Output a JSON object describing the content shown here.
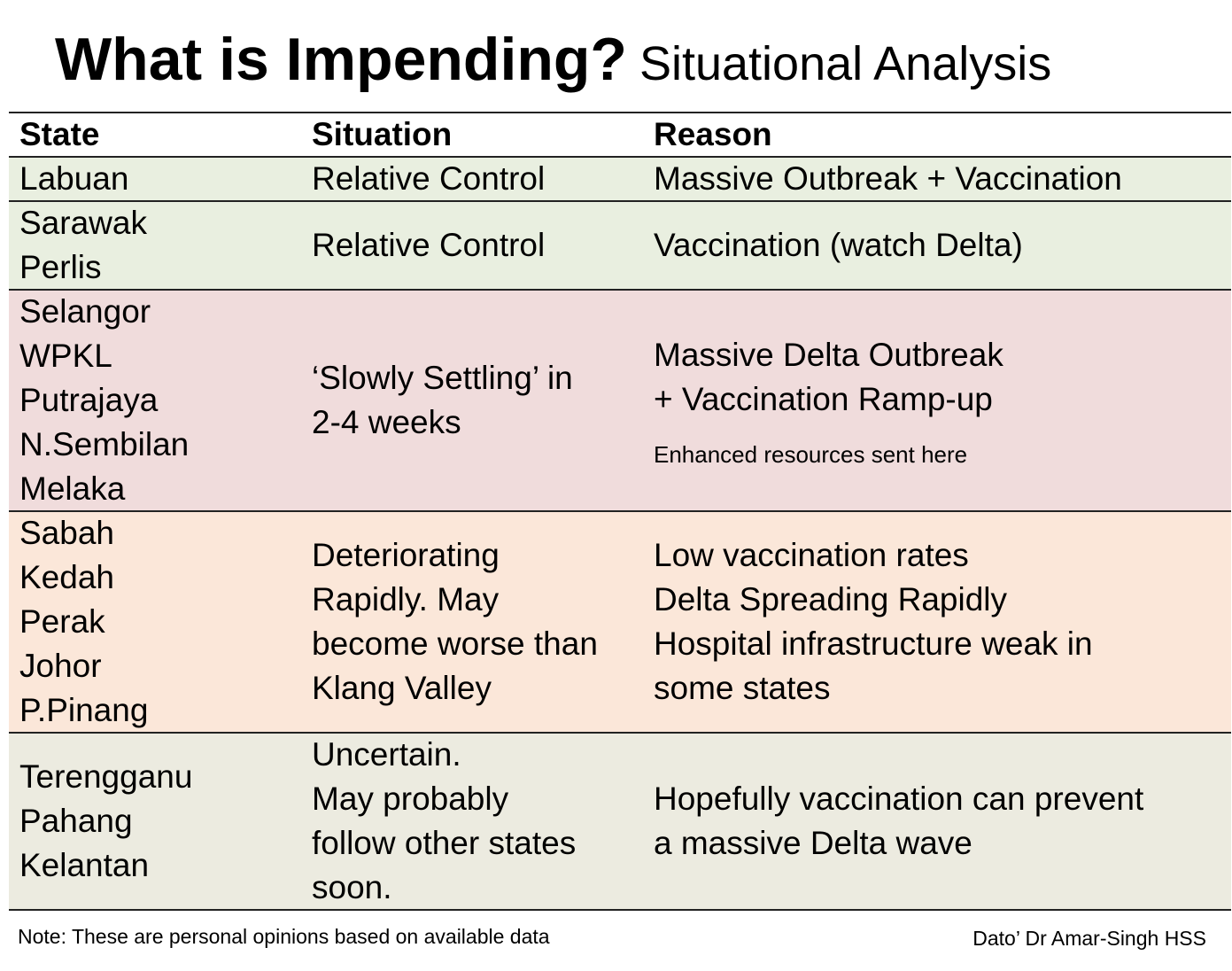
{
  "title": "What is Impending?",
  "subtitle": "Situational Analysis",
  "table": {
    "headers": [
      "State",
      "Situation",
      "Reason"
    ],
    "rows": [
      {
        "states": [
          "Labuan"
        ],
        "situation": [
          "Relative Control"
        ],
        "reason": [
          "Massive Outbreak + Vaccination"
        ]
      },
      {
        "states": [
          "Sarawak",
          "Perlis"
        ],
        "situation": [
          "Relative Control"
        ],
        "reason": [
          "Vaccination (watch Delta)"
        ]
      },
      {
        "states": [
          "Selangor",
          "WPKL",
          "Putrajaya",
          "N.Sembilan",
          "Melaka"
        ],
        "situation": [
          "‘Slowly Settling’ in",
          "2-4 weeks"
        ],
        "reason": [
          "Massive Delta Outbreak",
          "+ Vaccination Ramp-up"
        ],
        "reason_note": "Enhanced resources sent here"
      },
      {
        "states": [
          "Sabah",
          "Kedah",
          "Perak",
          "Johor",
          "P.Pinang"
        ],
        "situation": [
          "Deteriorating",
          "Rapidly. May",
          "become worse than",
          "Klang Valley"
        ],
        "reason": [
          "Low vaccination rates",
          "Delta Spreading Rapidly",
          "Hospital infrastructure weak in",
          "some states"
        ]
      },
      {
        "states": [
          "Terengganu",
          "Pahang",
          "Kelantan"
        ],
        "situation": [
          "Uncertain.",
          "May probably",
          "follow other states",
          "soon."
        ],
        "reason": [
          "Hopefully vaccination can prevent",
          "a massive Delta wave"
        ]
      }
    ]
  },
  "note": "Note: These are personal opinions based on available data",
  "author": "Dato’ Dr Amar-Singh HSS"
}
